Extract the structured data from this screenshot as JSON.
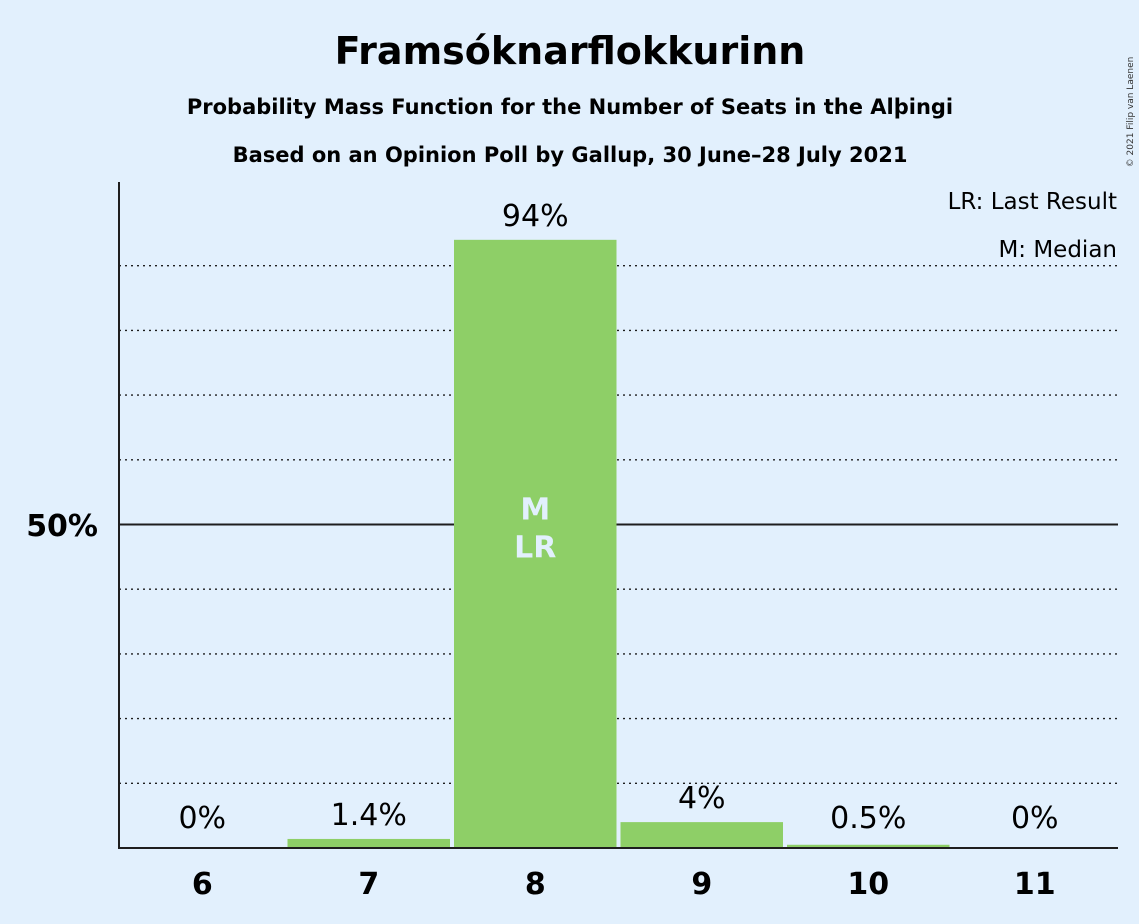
{
  "chart_data": {
    "type": "bar",
    "title": "Framsóknarflokkurinn",
    "subtitle": "Probability Mass Function for the Number of Seats in the Alþingi",
    "subtitle2": "Based on an Opinion Poll by Gallup, 30 June–28 July 2021",
    "copyright": "© 2021 Filip van Laenen",
    "categories": [
      "6",
      "7",
      "8",
      "9",
      "10",
      "11"
    ],
    "values": [
      0,
      1.4,
      94,
      4,
      0.5,
      0
    ],
    "data_labels": [
      "0%",
      "1.4%",
      "94%",
      "4%",
      "0.5%",
      "0%"
    ],
    "bar_markers": [
      "",
      "",
      "M\nLR",
      "",
      "",
      ""
    ],
    "ylim": [
      0,
      100
    ],
    "ytick_label": "50%",
    "ytick_value": 50,
    "grid_step": 10,
    "legend": [
      "LR: Last Result",
      "M: Median"
    ],
    "legend_position": "top-right",
    "colors": {
      "background": "#e2f0fd",
      "bar": "#8ecf67",
      "text": "#1e1e1e",
      "inbar_text": "#e2f0fd"
    }
  }
}
